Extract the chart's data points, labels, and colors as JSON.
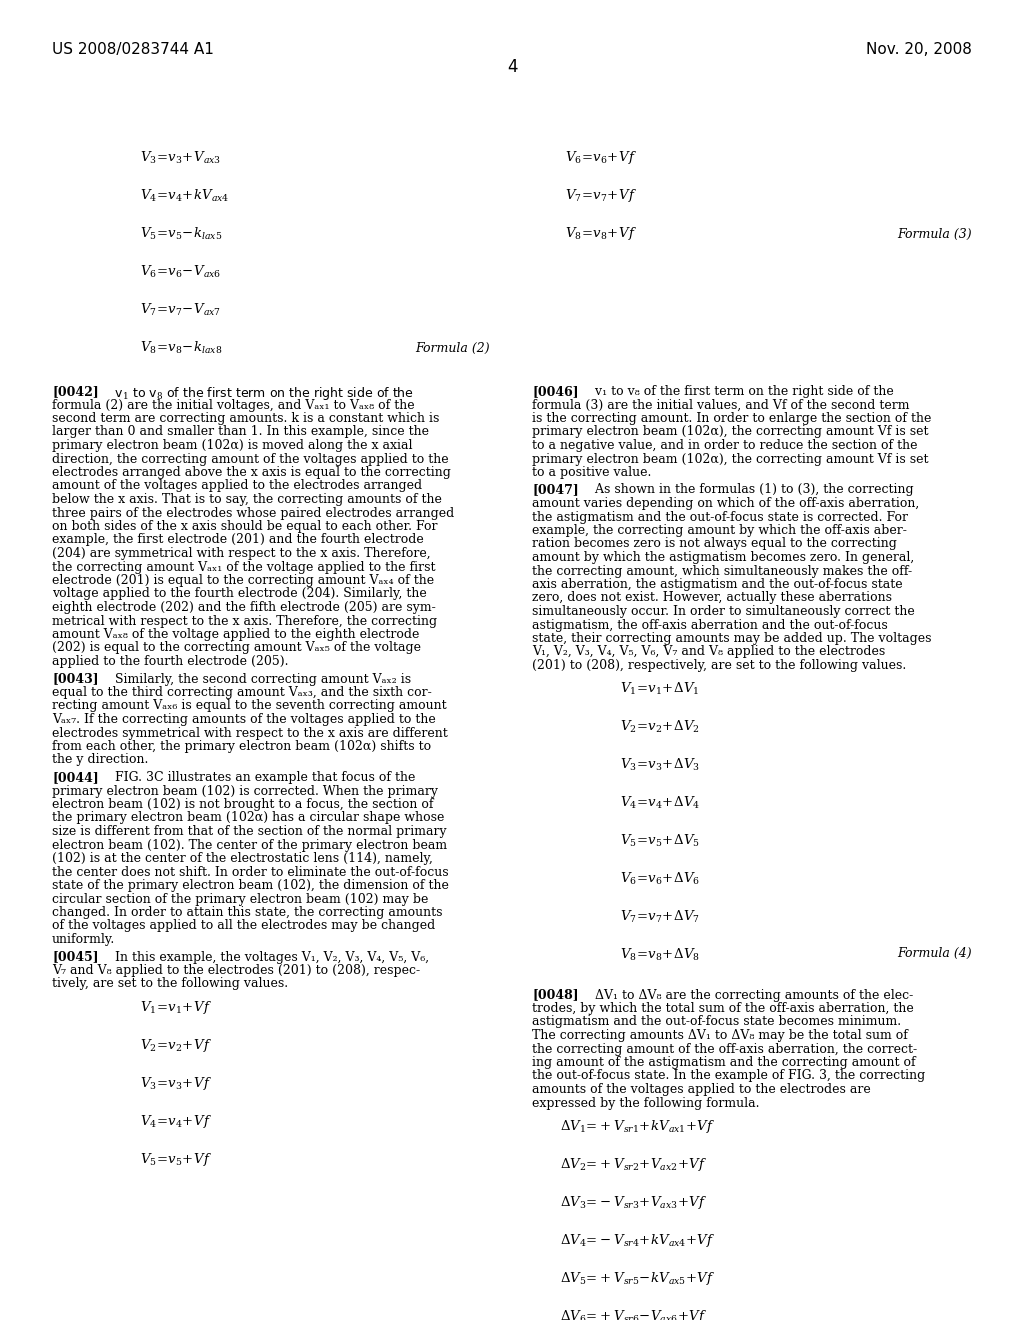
{
  "header_left": "US 2008/0283744 A1",
  "header_right": "Nov. 20, 2008",
  "page_number": "4",
  "background_color": "#ffffff",
  "text_color": "#000000"
}
